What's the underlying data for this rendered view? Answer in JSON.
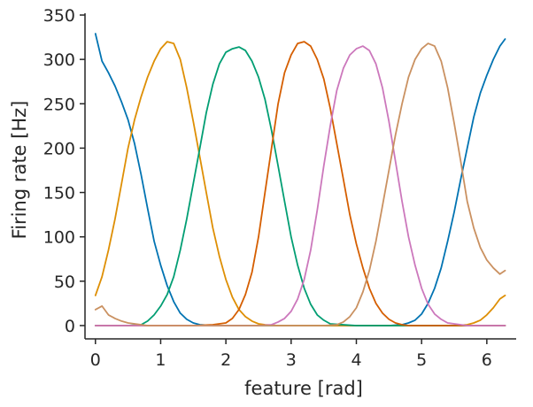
{
  "chart_data": {
    "type": "line",
    "title": "",
    "xlabel": "feature [rad]",
    "ylabel": "Firing rate [Hz]",
    "xlim": [
      -0.16,
      6.45
    ],
    "ylim": [
      -15,
      352
    ],
    "xticks": [
      0,
      1,
      2,
      3,
      4,
      5,
      6
    ],
    "xtick_labels": [
      "0",
      "1",
      "2",
      "3",
      "4",
      "5",
      "6"
    ],
    "yticks": [
      0,
      50,
      100,
      150,
      200,
      250,
      300,
      350
    ],
    "ytick_labels": [
      "0",
      "50",
      "100",
      "150",
      "200",
      "250",
      "300",
      "350"
    ],
    "grid": false,
    "legend": "none",
    "series": [
      {
        "color": "#0173b2",
        "x": [
          0.0,
          0.1,
          0.2,
          0.3,
          0.4,
          0.5,
          0.6,
          0.7,
          0.8,
          0.9,
          1.0,
          1.1,
          1.2,
          1.3,
          1.4,
          1.5,
          1.6,
          1.8,
          2.0,
          2.5,
          3.0,
          3.5,
          4.0,
          4.5,
          4.7,
          4.8,
          4.9,
          5.0,
          5.1,
          5.2,
          5.3,
          5.4,
          5.5,
          5.6,
          5.7,
          5.8,
          5.9,
          6.0,
          6.1,
          6.2,
          6.28
        ],
        "y": [
          329,
          298,
          285,
          270,
          252,
          232,
          205,
          170,
          132,
          95,
          68,
          45,
          27,
          14,
          7,
          3,
          1,
          0,
          0,
          0,
          0,
          0,
          0,
          0,
          1,
          3,
          6,
          13,
          25,
          42,
          65,
          95,
          128,
          165,
          200,
          235,
          262,
          282,
          300,
          315,
          323
        ]
      },
      {
        "color": "#de8f05",
        "x": [
          0.0,
          0.1,
          0.2,
          0.3,
          0.4,
          0.5,
          0.6,
          0.7,
          0.8,
          0.9,
          1.0,
          1.1,
          1.2,
          1.3,
          1.4,
          1.5,
          1.6,
          1.7,
          1.8,
          1.9,
          2.0,
          2.1,
          2.2,
          2.3,
          2.4,
          2.5,
          2.6,
          2.8,
          3.0,
          3.5,
          4.0,
          4.5,
          5.0,
          5.5,
          5.7,
          5.8,
          5.9,
          6.0,
          6.1,
          6.2,
          6.28
        ],
        "y": [
          34,
          55,
          85,
          120,
          160,
          200,
          232,
          258,
          280,
          298,
          312,
          320,
          318,
          300,
          268,
          230,
          190,
          150,
          110,
          78,
          52,
          32,
          18,
          10,
          5,
          2,
          1,
          0,
          0,
          0,
          0,
          0,
          0,
          0,
          1,
          3,
          6,
          12,
          20,
          30,
          34
        ]
      },
      {
        "color": "#029e73",
        "x": [
          0.0,
          0.5,
          0.7,
          0.8,
          0.9,
          1.0,
          1.1,
          1.2,
          1.3,
          1.4,
          1.5,
          1.6,
          1.7,
          1.8,
          1.9,
          2.0,
          2.1,
          2.2,
          2.3,
          2.4,
          2.5,
          2.6,
          2.7,
          2.8,
          2.9,
          3.0,
          3.1,
          3.2,
          3.3,
          3.4,
          3.5,
          3.6,
          3.8,
          4.0,
          4.5,
          5.0,
          5.5,
          6.0,
          6.28
        ],
        "y": [
          0,
          0,
          1,
          5,
          12,
          22,
          35,
          55,
          85,
          120,
          160,
          200,
          240,
          272,
          295,
          308,
          312,
          314,
          310,
          298,
          280,
          255,
          220,
          180,
          140,
          100,
          68,
          42,
          24,
          12,
          6,
          2,
          1,
          0,
          0,
          0,
          0,
          0,
          0
        ]
      },
      {
        "color": "#d55e00",
        "x": [
          0.0,
          1.0,
          1.5,
          1.8,
          2.0,
          2.1,
          2.2,
          2.3,
          2.4,
          2.5,
          2.6,
          2.7,
          2.8,
          2.9,
          3.0,
          3.1,
          3.2,
          3.3,
          3.4,
          3.5,
          3.6,
          3.7,
          3.8,
          3.9,
          4.0,
          4.1,
          4.2,
          4.3,
          4.4,
          4.5,
          4.6,
          4.7,
          4.8,
          5.0,
          5.5,
          6.0,
          6.28
        ],
        "y": [
          0,
          0,
          0,
          1,
          3,
          8,
          18,
          35,
          60,
          100,
          150,
          200,
          250,
          285,
          305,
          318,
          320,
          315,
          300,
          278,
          245,
          205,
          165,
          125,
          92,
          65,
          42,
          25,
          14,
          7,
          3,
          1,
          0,
          0,
          0,
          0,
          0
        ]
      },
      {
        "color": "#cc78bc",
        "x": [
          0.0,
          1.0,
          2.0,
          2.5,
          2.7,
          2.8,
          2.9,
          3.0,
          3.1,
          3.2,
          3.3,
          3.4,
          3.5,
          3.6,
          3.7,
          3.8,
          3.9,
          4.0,
          4.1,
          4.2,
          4.3,
          4.4,
          4.5,
          4.6,
          4.7,
          4.8,
          4.9,
          5.0,
          5.1,
          5.2,
          5.3,
          5.4,
          5.5,
          5.6,
          5.7,
          5.8,
          6.0,
          6.28
        ],
        "y": [
          0,
          0,
          0,
          0,
          1,
          4,
          8,
          16,
          30,
          52,
          85,
          130,
          180,
          225,
          265,
          290,
          305,
          312,
          315,
          310,
          295,
          268,
          230,
          185,
          140,
          100,
          68,
          42,
          24,
          13,
          7,
          3,
          2,
          1,
          0,
          0,
          0,
          0
        ]
      },
      {
        "color": "#ca9161",
        "x": [
          0.0,
          0.1,
          0.2,
          0.3,
          0.4,
          0.5,
          0.6,
          0.7,
          0.8,
          1.0,
          1.5,
          2.0,
          3.0,
          3.5,
          3.7,
          3.8,
          3.9,
          4.0,
          4.1,
          4.2,
          4.3,
          4.4,
          4.5,
          4.6,
          4.7,
          4.8,
          4.9,
          5.0,
          5.1,
          5.2,
          5.3,
          5.4,
          5.5,
          5.6,
          5.7,
          5.8,
          5.9,
          6.0,
          6.1,
          6.2,
          6.28
        ],
        "y": [
          18,
          22,
          12,
          8,
          5,
          3,
          2,
          1,
          0,
          0,
          0,
          0,
          0,
          0,
          1,
          4,
          10,
          20,
          38,
          62,
          95,
          135,
          175,
          215,
          250,
          280,
          300,
          312,
          318,
          315,
          298,
          268,
          228,
          185,
          140,
          110,
          88,
          74,
          65,
          58,
          62
        ]
      }
    ]
  }
}
